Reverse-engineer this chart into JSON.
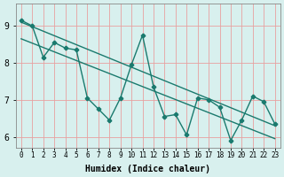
{
  "xlabel": "Humidex (Indice chaleur)",
  "ylabel": "",
  "bg_color": "#d8f0ee",
  "grid_color": "#e8a0a0",
  "line_color": "#1a7a6e",
  "xlim": [
    -0.5,
    23.5
  ],
  "ylim": [
    5.7,
    9.6
  ],
  "x_data": [
    0,
    1,
    2,
    3,
    4,
    5,
    6,
    7,
    8,
    9,
    10,
    11,
    12,
    13,
    14,
    15,
    16,
    17,
    18,
    19,
    20,
    21,
    22,
    23
  ],
  "y_data": [
    9.15,
    9.0,
    8.15,
    8.55,
    8.4,
    8.35,
    7.05,
    6.75,
    6.45,
    7.05,
    7.95,
    8.75,
    7.35,
    6.55,
    6.6,
    6.05,
    7.05,
    7.0,
    6.8,
    5.9,
    6.45,
    7.1,
    6.95,
    6.35
  ],
  "trend1_x": [
    0,
    23
  ],
  "trend1_y": [
    9.1,
    6.3
  ],
  "trend2_x": [
    0,
    23
  ],
  "trend2_y": [
    8.65,
    5.95
  ],
  "xtick_labels": [
    "0",
    "1",
    "2",
    "3",
    "4",
    "5",
    "6",
    "7",
    "8",
    "9",
    "10",
    "11",
    "12",
    "13",
    "14",
    "15",
    "16",
    "17",
    "18",
    "19",
    "20",
    "21",
    "22",
    "23"
  ],
  "ytick_values": [
    6,
    7,
    8,
    9
  ],
  "marker": "P",
  "markersize": 3,
  "linewidth": 1.0
}
